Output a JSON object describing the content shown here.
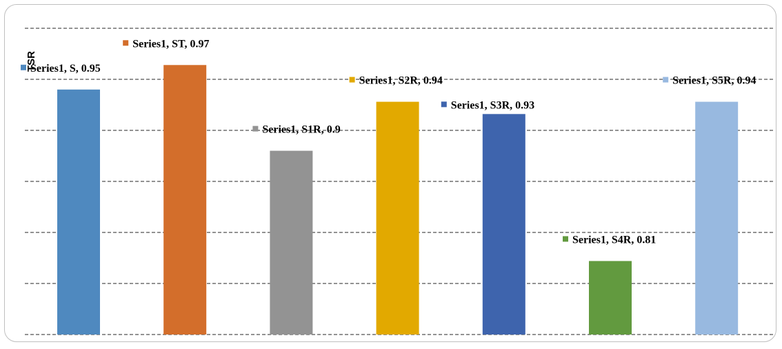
{
  "chart_data": {
    "type": "bar",
    "title": "",
    "xlabel": "",
    "ylabel": "TSR",
    "ylim": [
      0.75,
      1.0
    ],
    "grid": true,
    "legend": "none",
    "categories": [
      "S",
      "ST",
      "S1R",
      "S2R",
      "S3R",
      "S4R",
      "S5R"
    ],
    "series": [
      {
        "name": "Series1",
        "values": [
          0.95,
          0.97,
          0.9,
          0.94,
          0.93,
          0.81,
          0.94
        ],
        "colors": [
          "#4f89bf",
          "#d36e2b",
          "#939393",
          "#e2a900",
          "#3e64ad",
          "#629a3f",
          "#98b9e0"
        ]
      }
    ],
    "data_labels": [
      "Series1, S, 0.95",
      "Series1, ST, 0.97",
      "Series1, S1R, 0.9",
      "Series1, S2R, 0.94",
      "Series1, S3R, 0.93",
      "Series1, S4R, 0.81",
      "Series1, S5R, 0.94"
    ]
  }
}
